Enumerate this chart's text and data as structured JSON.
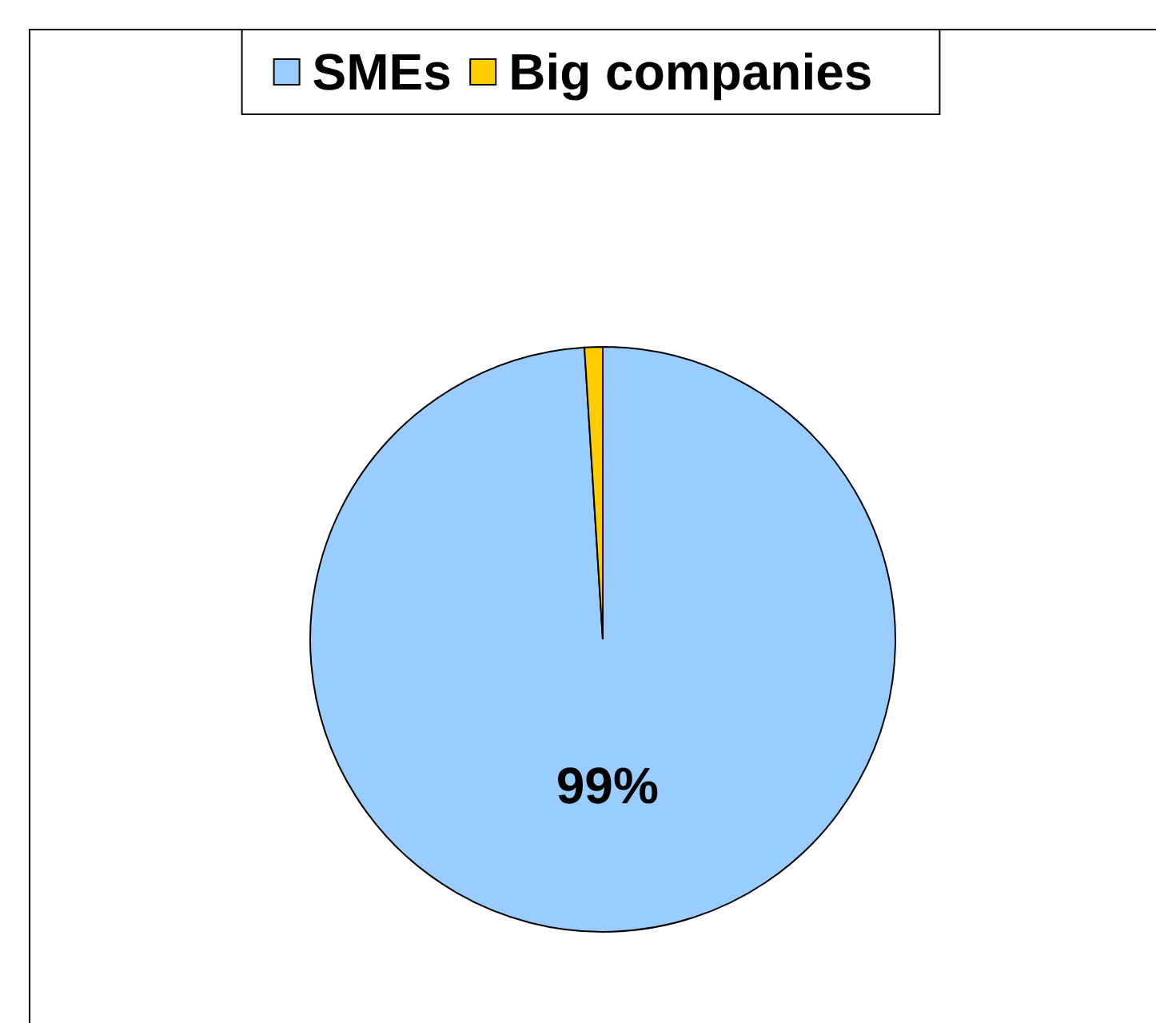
{
  "chart_data": {
    "type": "pie",
    "categories": [
      "SMEs",
      "Big companies"
    ],
    "values": [
      99,
      1
    ],
    "colors": [
      "#99ccff",
      "#ffcc00"
    ],
    "value_labels": [
      "99%",
      null
    ],
    "legend": "top"
  }
}
